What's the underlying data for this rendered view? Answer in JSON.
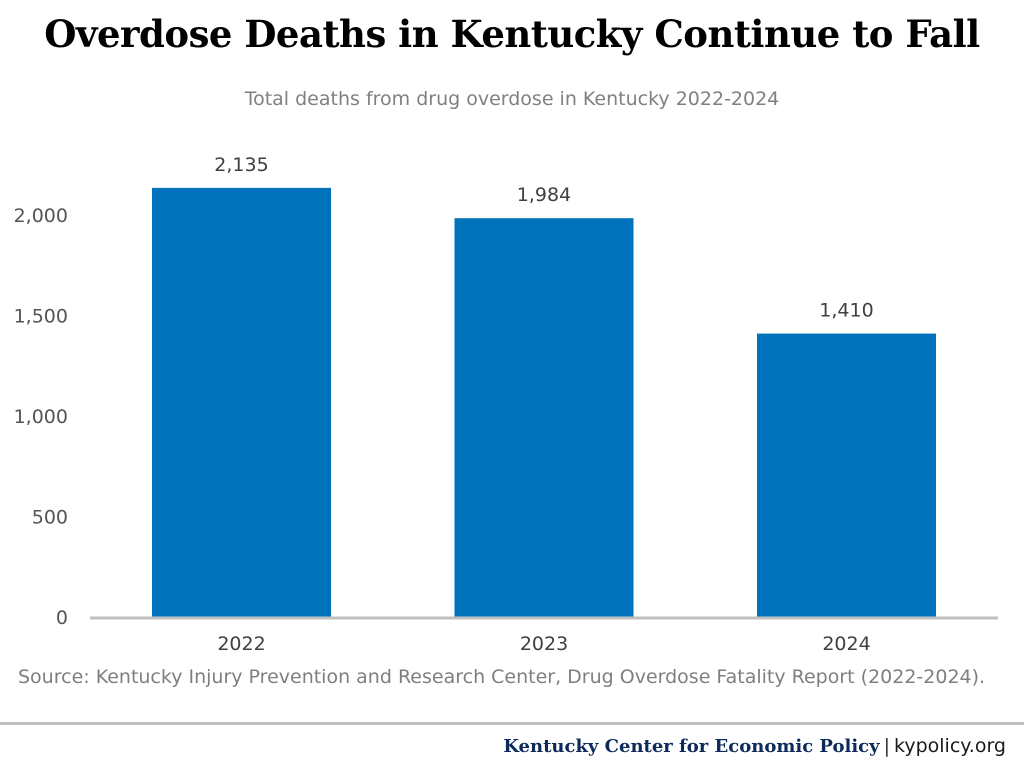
{
  "title": "Overdose Deaths in Kentucky Continue to Fall",
  "subtitle": "Total deaths from drug overdose in Kentucky 2022-2024",
  "source": "Source: Kentucky Injury Prevention and Research Center, Drug Overdose Fatality Report (2022-2024).",
  "footer": {
    "org": "Kentucky Center for Economic Policy",
    "separator": "|",
    "url": "kypolicy.org"
  },
  "colors": {
    "bar": "#0072bc",
    "axis": "#c0c0c0",
    "footer_org": "#0d2a5a"
  },
  "chart_data": {
    "type": "bar",
    "categories": [
      "2022",
      "2023",
      "2024"
    ],
    "values": [
      2135,
      1984,
      1410
    ],
    "data_labels": [
      "2,135",
      "1,984",
      "1,410"
    ],
    "title": "Overdose Deaths in Kentucky Continue to Fall",
    "subtitle": "Total deaths from drug overdose in Kentucky 2022-2024",
    "xlabel": "",
    "ylabel": "",
    "ylim": [
      0,
      2000
    ],
    "yticks": [
      0,
      500,
      1000,
      1500,
      2000
    ],
    "ytick_labels": [
      "0",
      "500",
      "1,000",
      "1,500",
      "2,000"
    ],
    "grid": false,
    "legend": "none"
  }
}
